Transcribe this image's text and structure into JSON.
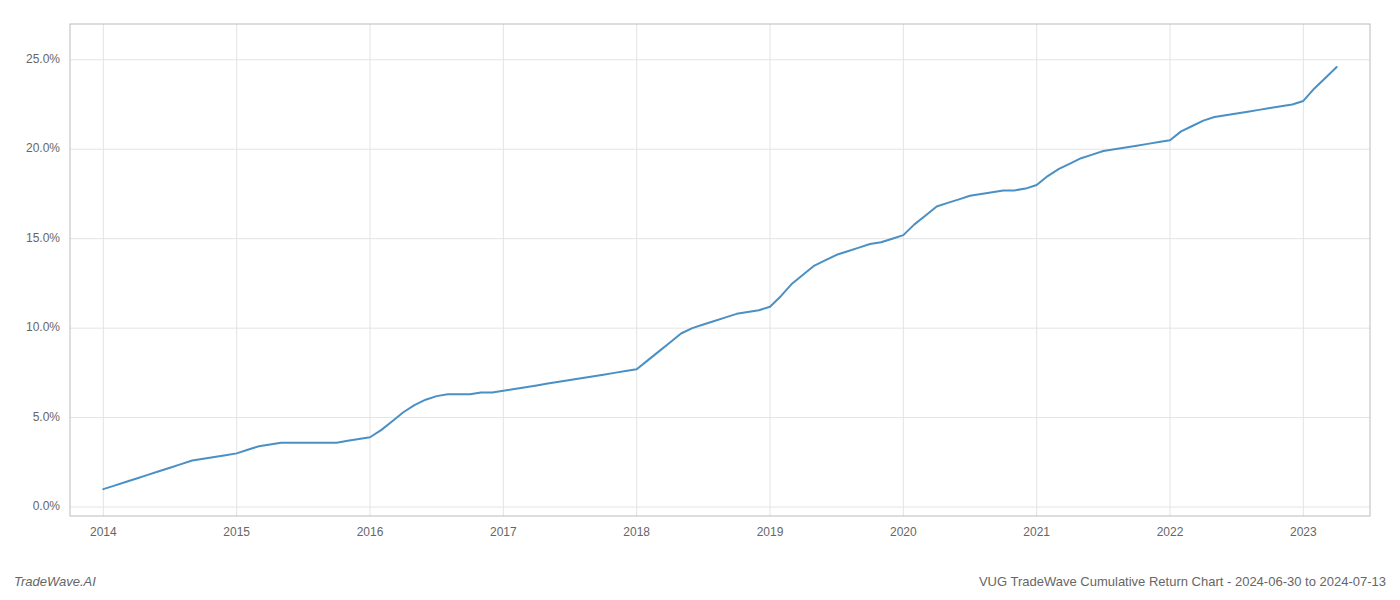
{
  "chart_data": {
    "type": "line",
    "title": "VUG TradeWave Cumulative Return Chart - 2024-06-30 to 2024-07-13",
    "annotations": [
      "TradeWave.AI"
    ],
    "color": "#4a90c4",
    "grid": true,
    "x": [
      2014.0,
      2014.083,
      2014.167,
      2014.25,
      2014.333,
      2014.417,
      2014.5,
      2014.583,
      2014.667,
      2014.75,
      2014.833,
      2014.917,
      2015.0,
      2015.083,
      2015.167,
      2015.25,
      2015.333,
      2015.417,
      2015.5,
      2015.583,
      2015.667,
      2015.75,
      2015.833,
      2015.917,
      2016.0,
      2016.083,
      2016.167,
      2016.25,
      2016.333,
      2016.417,
      2016.5,
      2016.583,
      2016.667,
      2016.75,
      2016.833,
      2016.917,
      2017.0,
      2017.083,
      2017.167,
      2017.25,
      2017.333,
      2017.417,
      2017.5,
      2017.583,
      2017.667,
      2017.75,
      2017.833,
      2017.917,
      2018.0,
      2018.083,
      2018.167,
      2018.25,
      2018.333,
      2018.417,
      2018.5,
      2018.583,
      2018.667,
      2018.75,
      2018.833,
      2018.917,
      2019.0,
      2019.083,
      2019.167,
      2019.25,
      2019.333,
      2019.417,
      2019.5,
      2019.583,
      2019.667,
      2019.75,
      2019.833,
      2019.917,
      2020.0,
      2020.083,
      2020.167,
      2020.25,
      2020.333,
      2020.417,
      2020.5,
      2020.583,
      2020.667,
      2020.75,
      2020.833,
      2020.917,
      2021.0,
      2021.083,
      2021.167,
      2021.25,
      2021.333,
      2021.417,
      2021.5,
      2021.583,
      2021.667,
      2021.75,
      2021.833,
      2021.917,
      2022.0,
      2022.083,
      2022.167,
      2022.25,
      2022.333,
      2022.417,
      2022.5,
      2022.583,
      2022.667,
      2022.75,
      2022.833,
      2022.917,
      2023.0,
      2023.083,
      2023.167,
      2023.25
    ],
    "values": [
      0.01,
      0.012,
      0.014,
      0.016,
      0.018,
      0.02,
      0.022,
      0.024,
      0.026,
      0.027,
      0.028,
      0.029,
      0.03,
      0.032,
      0.034,
      0.035,
      0.036,
      0.036,
      0.036,
      0.036,
      0.036,
      0.036,
      0.037,
      0.038,
      0.039,
      0.043,
      0.048,
      0.053,
      0.057,
      0.06,
      0.062,
      0.063,
      0.063,
      0.063,
      0.064,
      0.064,
      0.065,
      0.066,
      0.067,
      0.068,
      0.069,
      0.07,
      0.071,
      0.072,
      0.073,
      0.074,
      0.075,
      0.076,
      0.077,
      0.082,
      0.087,
      0.092,
      0.097,
      0.1,
      0.102,
      0.104,
      0.106,
      0.108,
      0.109,
      0.11,
      0.112,
      0.118,
      0.125,
      0.13,
      0.135,
      0.138,
      0.141,
      0.143,
      0.145,
      0.147,
      0.148,
      0.15,
      0.152,
      0.158,
      0.163,
      0.168,
      0.17,
      0.172,
      0.174,
      0.175,
      0.176,
      0.177,
      0.177,
      0.178,
      0.18,
      0.185,
      0.189,
      0.192,
      0.195,
      0.197,
      0.199,
      0.2,
      0.201,
      0.202,
      0.203,
      0.204,
      0.205,
      0.21,
      0.213,
      0.216,
      0.218,
      0.219,
      0.22,
      0.221,
      0.222,
      0.223,
      0.224,
      0.225,
      0.227,
      0.234,
      0.24,
      0.246
    ],
    "xlim": [
      2013.75,
      2023.5
    ],
    "xticks": [
      2014,
      2015,
      2016,
      2017,
      2018,
      2019,
      2020,
      2021,
      2022,
      2023
    ],
    "ylim": [
      -0.005,
      0.27
    ],
    "yticks": [
      {
        "value": 0.0,
        "label": "0.0%"
      },
      {
        "value": 0.05,
        "label": "5.0%"
      },
      {
        "value": 0.1,
        "label": "10.0%"
      },
      {
        "value": 0.15,
        "label": "15.0%"
      },
      {
        "value": 0.2,
        "label": "20.0%"
      },
      {
        "value": 0.25,
        "label": "25.0%"
      }
    ]
  }
}
